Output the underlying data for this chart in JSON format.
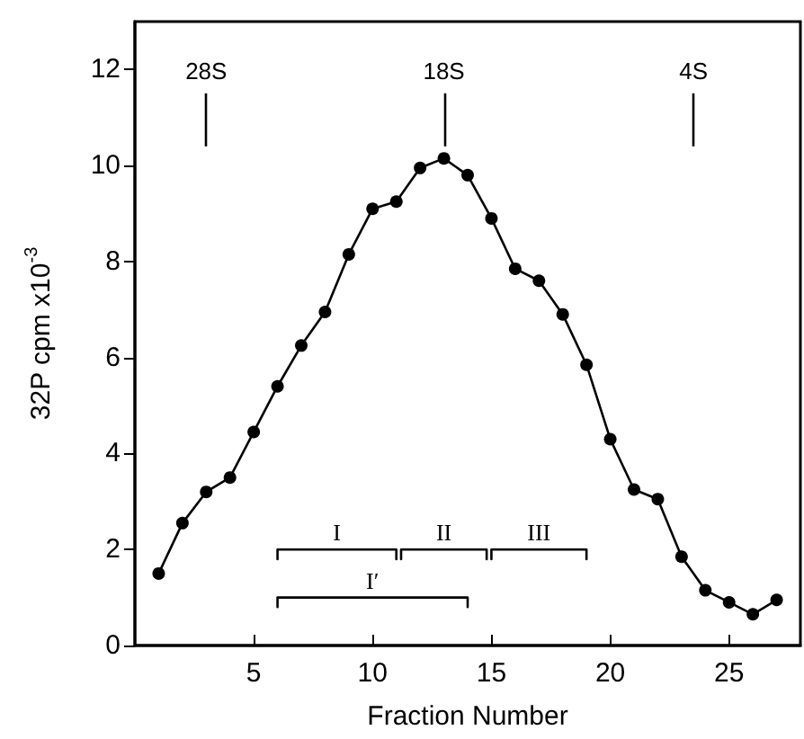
{
  "chart_data": {
    "type": "line",
    "xlabel": "Fraction Number",
    "ylabel": "32P cpm x10$^{-3}$",
    "xlim": [
      0,
      28
    ],
    "ylim": [
      0,
      13
    ],
    "xticks": [
      5,
      10,
      15,
      20,
      25
    ],
    "yticks": [
      0,
      2,
      4,
      6,
      8,
      10,
      12
    ],
    "grid": false,
    "marker": "circle",
    "line_style": "solid",
    "series": [
      {
        "color": "#000000",
        "x": [
          1,
          2,
          3,
          4,
          5,
          6,
          7,
          8,
          9,
          10,
          11,
          12,
          13,
          14,
          15,
          16,
          17,
          18,
          19,
          20,
          21,
          22,
          23,
          24,
          25,
          26,
          27
        ],
        "values": [
          1.5,
          2.55,
          3.2,
          3.5,
          4.45,
          5.4,
          6.25,
          6.95,
          8.15,
          9.1,
          9.25,
          9.95,
          10.15,
          9.8,
          8.9,
          7.85,
          7.6,
          6.9,
          5.85,
          4.3,
          3.25,
          3.05,
          1.85,
          1.15,
          0.9,
          0.65,
          0.95
        ]
      },
      {
        "name": "I",
        "color": "#000000",
        "marker": "none",
        "x": [
          6,
          6,
          11,
          11
        ],
        "values": [
          1.8,
          2,
          2,
          1.8
        ]
      },
      {
        "name": "II",
        "color": "#000000",
        "marker": "none",
        "x": [
          11.2,
          11.2,
          14.8,
          14.8
        ],
        "values": [
          1.8,
          2,
          2,
          1.8
        ]
      },
      {
        "name": "III",
        "color": "#000000",
        "marker": "none",
        "x": [
          15,
          15,
          19,
          19
        ],
        "values": [
          1.8,
          2,
          2,
          1.8
        ]
      },
      {
        "name": "I′",
        "color": "#000000",
        "marker": "none",
        "x": [
          6,
          6,
          14,
          14
        ],
        "values": [
          0.8,
          1,
          1,
          0.8
        ]
      }
    ],
    "ref_lines": [
      {
        "axis": "x",
        "value": 3,
        "label": "28S"
      },
      {
        "axis": "x",
        "value": 13,
        "label": "18S"
      },
      {
        "axis": "x",
        "value": 23.5,
        "label": "4S"
      }
    ]
  }
}
